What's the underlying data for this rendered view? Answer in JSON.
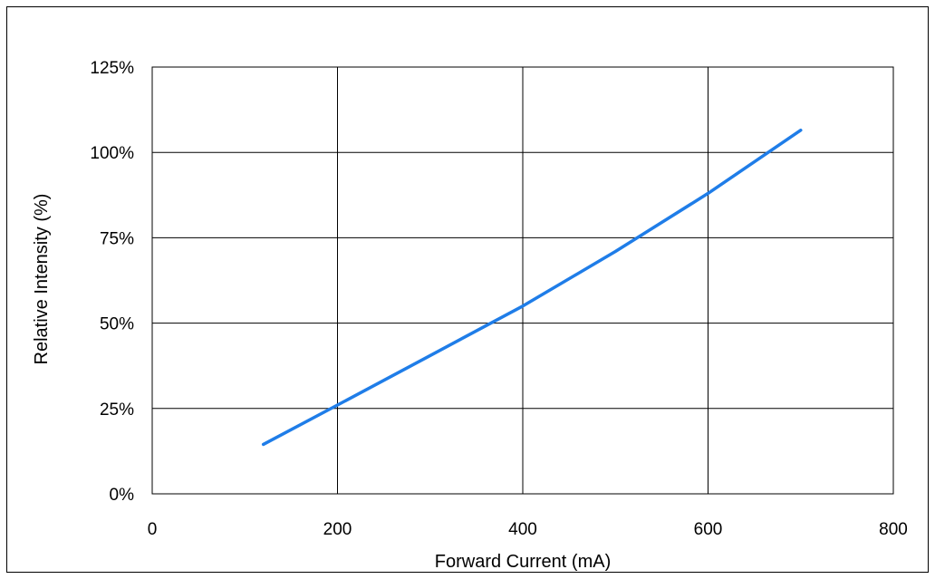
{
  "chart_data": {
    "type": "line",
    "title": "",
    "xlabel": "Forward Current (mA)",
    "ylabel": "Relative Intensity (%)",
    "xlim": [
      0,
      800
    ],
    "ylim": [
      0,
      125
    ],
    "x_ticks": [
      0,
      200,
      400,
      600,
      800
    ],
    "x_tick_labels": [
      "0",
      "200",
      "400",
      "600",
      "800"
    ],
    "y_ticks": [
      0,
      25,
      50,
      75,
      100,
      125
    ],
    "y_tick_labels": [
      "0%",
      "25%",
      "50%",
      "75%",
      "100%",
      "125%"
    ],
    "grid": true,
    "legend": "none",
    "series": [
      {
        "color": "#1f7de8",
        "x": [
          120,
          200,
          300,
          400,
          500,
          600,
          700
        ],
        "y": [
          14.5,
          26,
          40.5,
          55,
          71,
          88,
          106.5
        ]
      }
    ]
  }
}
